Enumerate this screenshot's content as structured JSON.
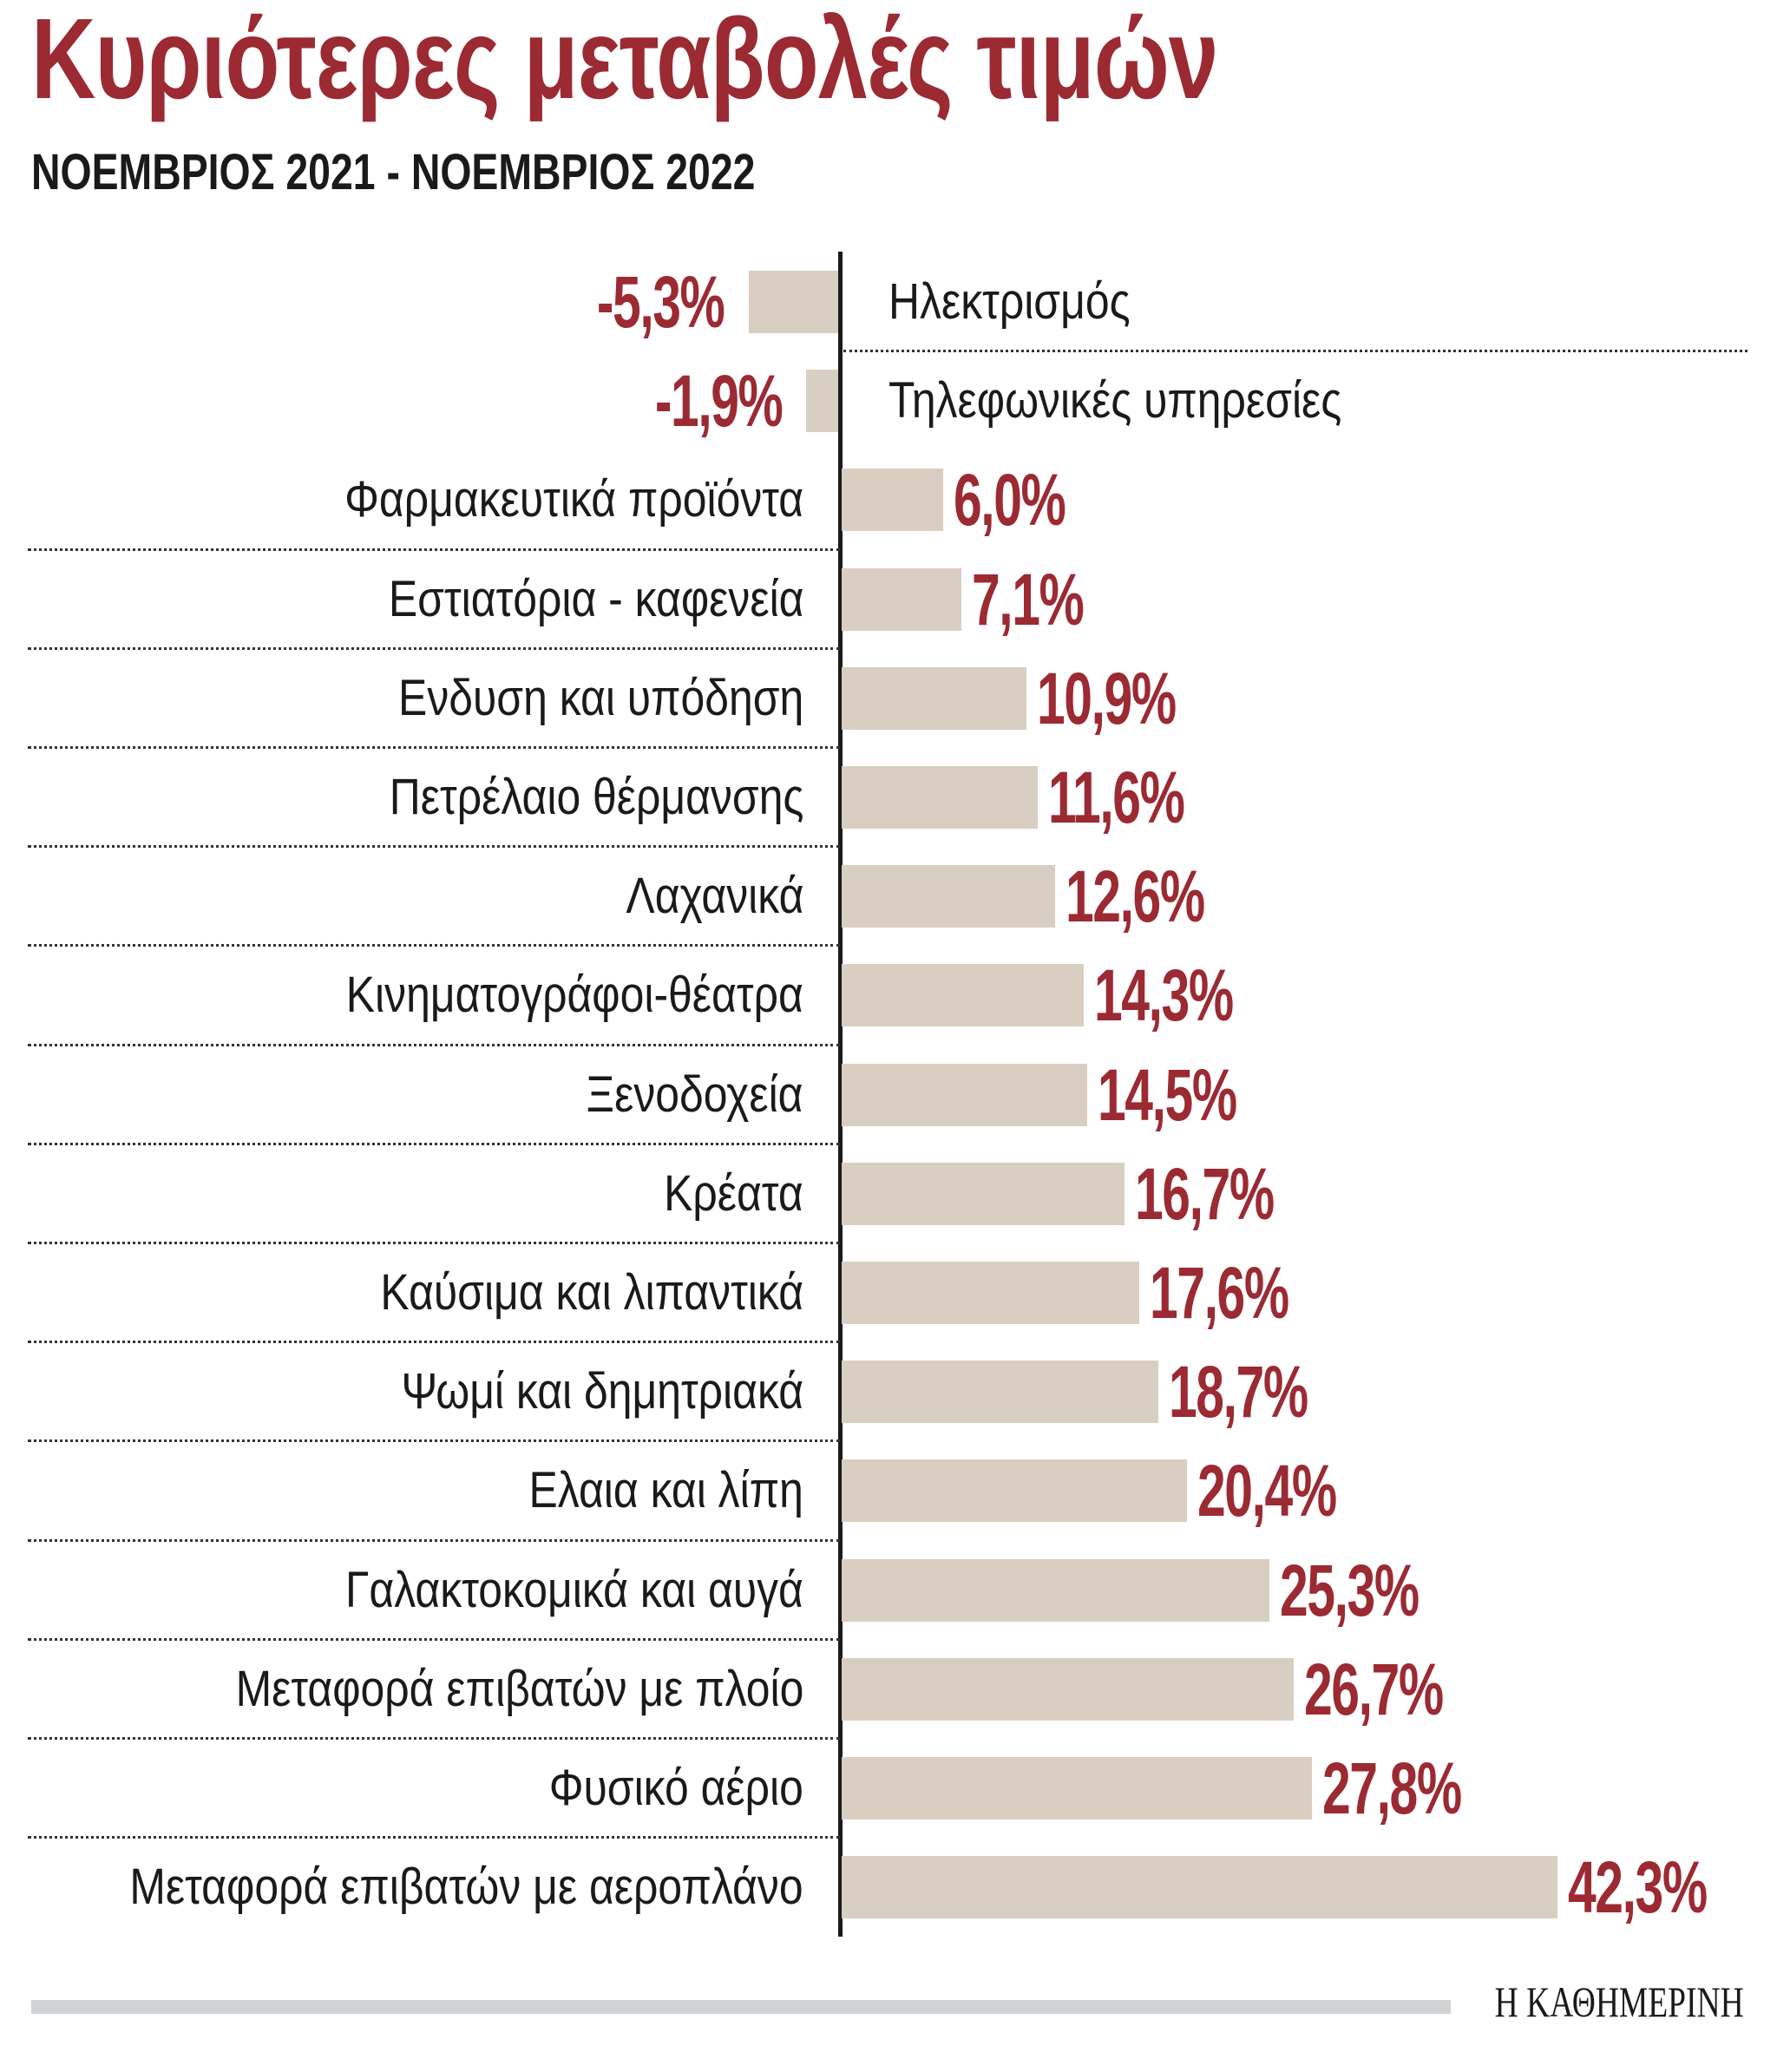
{
  "chart_data": {
    "type": "bar",
    "orientation": "horizontal",
    "title": "Κυριότερες μεταβολές τιμών",
    "subtitle": "ΝΟΕΜΒΡΙΟΣ 2021 - ΝΟΕΜΒΡΙΟΣ 2022",
    "categories": [
      "Ηλεκτρισμός",
      "Τηλεφωνικές υπηρεσίες",
      "Φαρμακευτικά προϊόντα",
      "Εστιατόρια - καφενεία",
      "Ενδυση και υπόδηση",
      "Πετρέλαιο θέρμανσης",
      "Λαχανικά",
      "Κινηματογράφοι-θέατρα",
      "Ξενοδοχεία",
      "Κρέατα",
      "Καύσιμα και λιπαντικά",
      "Ψωμί και δημητριακά",
      "Ελαια και λίπη",
      "Γαλακτοκομικά και αυγά",
      "Μεταφορά επιβατών με πλοίο",
      "Φυσικό αέριο",
      "Μεταφορά επιβατών με αεροπλάνο"
    ],
    "values": [
      -5.3,
      -1.9,
      6.0,
      7.1,
      10.9,
      11.6,
      12.6,
      14.3,
      14.5,
      16.7,
      17.6,
      18.7,
      20.4,
      25.3,
      26.7,
      27.8,
      42.3
    ],
    "value_labels": [
      "-5,3%",
      "-1,9%",
      "6,0%",
      "7,1%",
      "10,9%",
      "11,6%",
      "12,6%",
      "14,3%",
      "14,5%",
      "16,7%",
      "17,6%",
      "18,7%",
      "20,4%",
      "25,3%",
      "26,7%",
      "27,8%",
      "42,3%"
    ],
    "xlabel": "",
    "ylabel": "",
    "grid": false,
    "colors": {
      "bar": "#d9cec2",
      "value": "#9b2a33",
      "title": "#9b2a33",
      "text": "#1a1a1a"
    }
  },
  "footer": {
    "logo": "Η ΚΑΘΗΜΕΡΙΝΗ"
  }
}
